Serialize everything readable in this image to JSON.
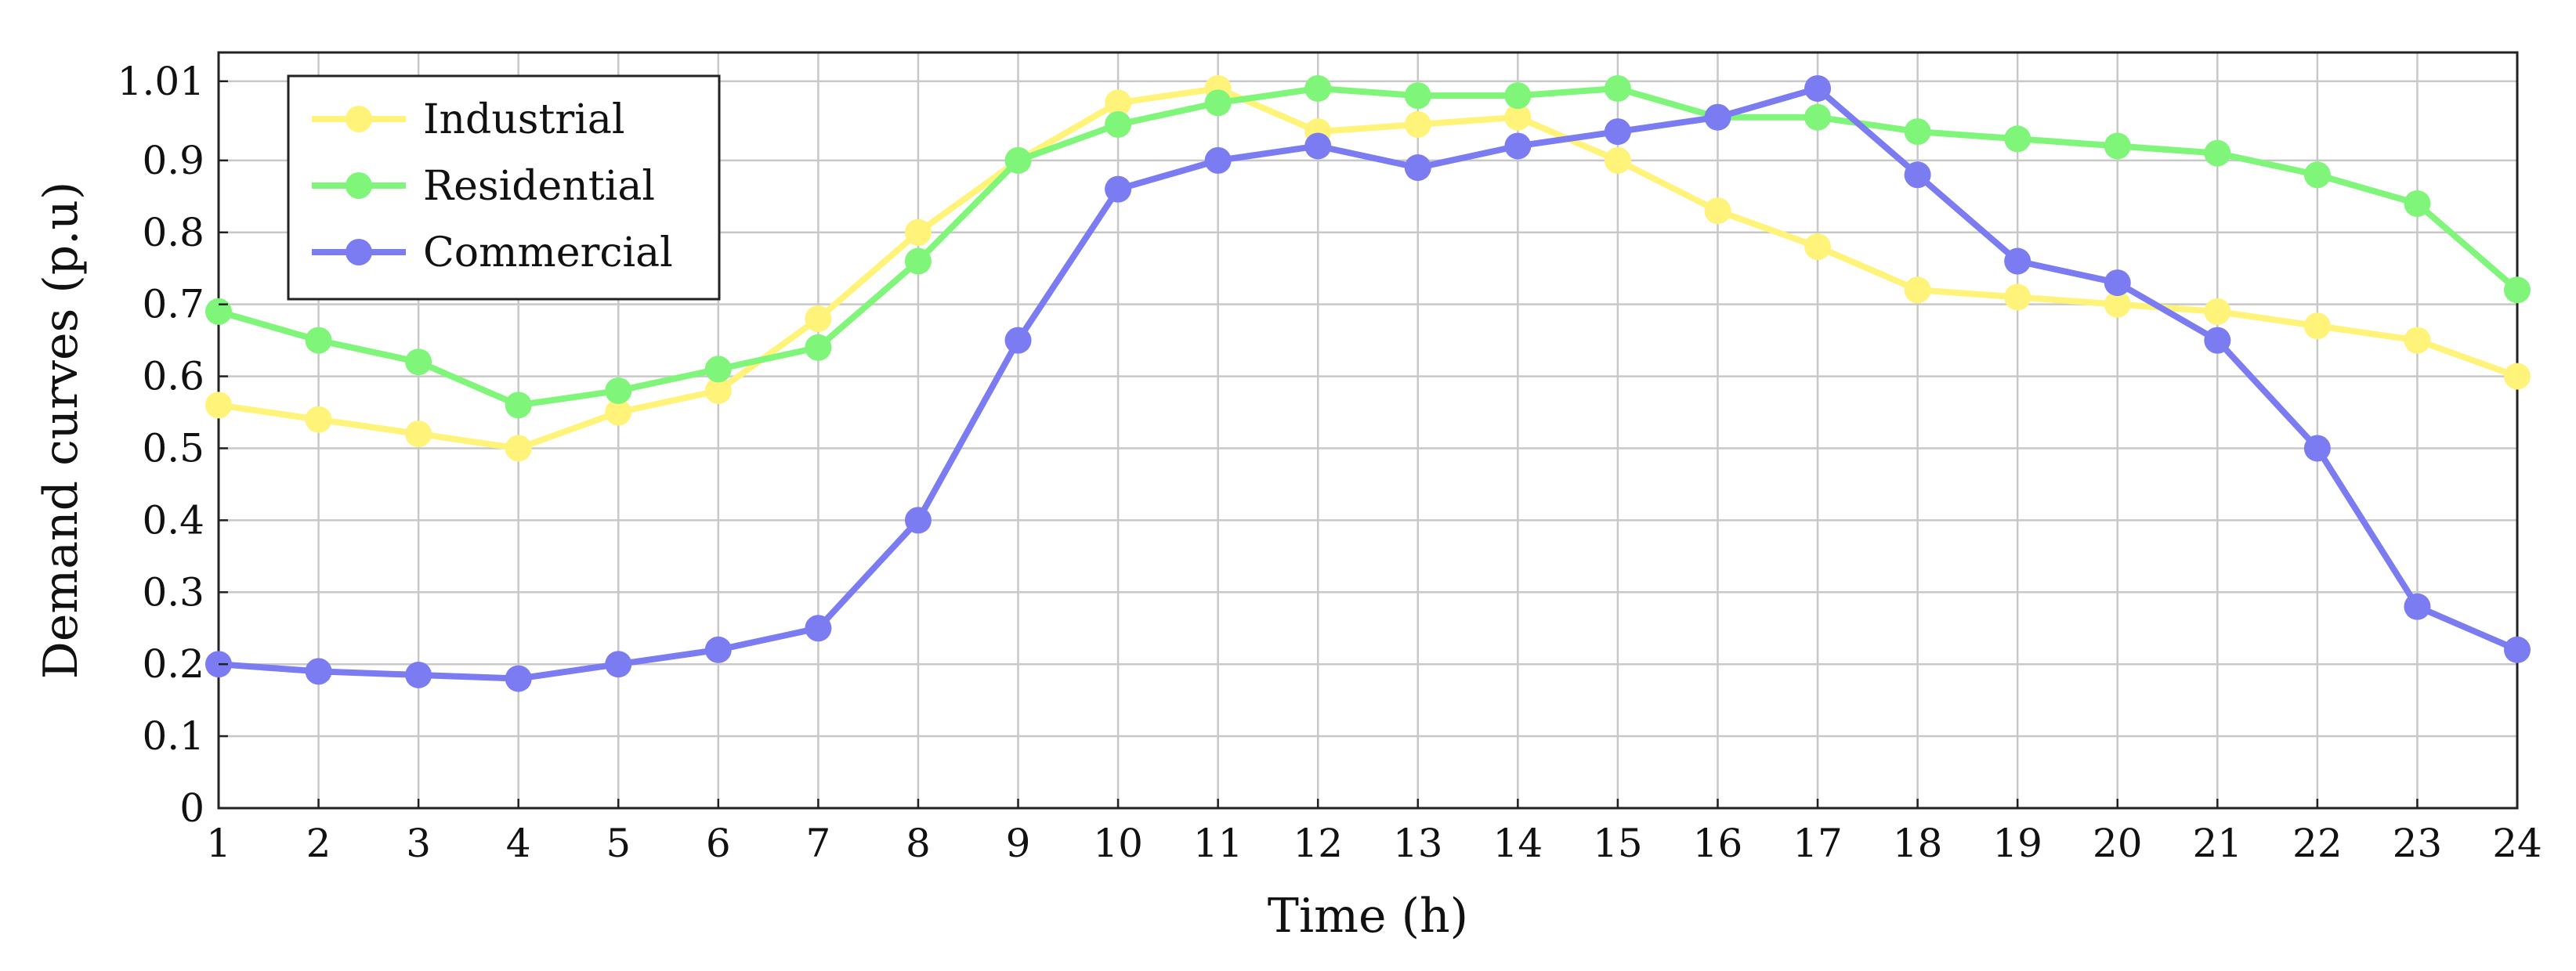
{
  "chart_data": {
    "type": "line",
    "title": "",
    "xlabel": "Time (h)",
    "ylabel": "Demand curves (p.u)",
    "xlim": [
      1,
      24
    ],
    "ylim": [
      0,
      1.05
    ],
    "grid": true,
    "legend_position": "top-left",
    "x_ticks": [
      "1",
      "2",
      "3",
      "4",
      "5",
      "6",
      "7",
      "8",
      "9",
      "10",
      "11",
      "12",
      "13",
      "14",
      "15",
      "16",
      "17",
      "18",
      "19",
      "20",
      "21",
      "22",
      "23",
      "24"
    ],
    "y_ticks": [
      {
        "value": 0,
        "label": "0"
      },
      {
        "value": 0.1,
        "label": "0.1"
      },
      {
        "value": 0.2,
        "label": "0.2"
      },
      {
        "value": 0.3,
        "label": "0.3"
      },
      {
        "value": 0.4,
        "label": "0.4"
      },
      {
        "value": 0.5,
        "label": "0.5"
      },
      {
        "value": 0.6,
        "label": "0.6"
      },
      {
        "value": 0.7,
        "label": "0.7"
      },
      {
        "value": 0.8,
        "label": "0.8"
      },
      {
        "value": 0.9,
        "label": "0.9"
      },
      {
        "value": 1.01,
        "label": "1.01"
      }
    ],
    "x": [
      1,
      2,
      3,
      4,
      5,
      6,
      7,
      8,
      9,
      10,
      11,
      12,
      13,
      14,
      15,
      16,
      17,
      18,
      19,
      20,
      21,
      22,
      23,
      24
    ],
    "series": [
      {
        "name": "Industrial",
        "color": "#fff37a",
        "values": [
          0.56,
          0.54,
          0.52,
          0.5,
          0.55,
          0.58,
          0.68,
          0.8,
          0.9,
          0.98,
          1.0,
          0.94,
          0.95,
          0.96,
          0.9,
          0.83,
          0.78,
          0.72,
          0.71,
          0.7,
          0.69,
          0.67,
          0.65,
          0.6
        ]
      },
      {
        "name": "Residential",
        "color": "#7ff57a",
        "values": [
          0.69,
          0.65,
          0.62,
          0.56,
          0.58,
          0.61,
          0.64,
          0.76,
          0.9,
          0.95,
          0.98,
          1.0,
          0.99,
          0.99,
          1.0,
          0.96,
          0.96,
          0.94,
          0.93,
          0.92,
          0.91,
          0.88,
          0.84,
          0.72
        ]
      },
      {
        "name": "Commercial",
        "color": "#7b7bf2",
        "values": [
          0.2,
          0.19,
          0.185,
          0.18,
          0.2,
          0.22,
          0.25,
          0.4,
          0.65,
          0.86,
          0.9,
          0.92,
          0.89,
          0.92,
          0.94,
          0.96,
          1.0,
          0.88,
          0.76,
          0.73,
          0.65,
          0.5,
          0.28,
          0.22
        ]
      }
    ]
  }
}
